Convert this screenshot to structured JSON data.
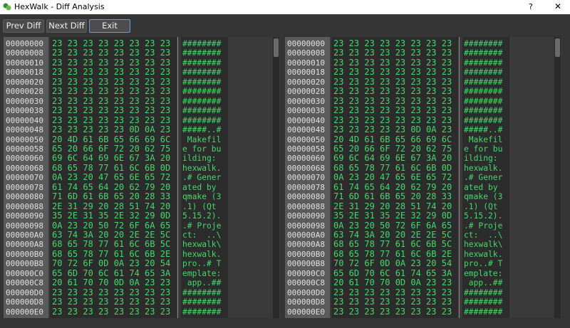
{
  "window": {
    "title": "HexWalk - Diff Analysis",
    "help": "?",
    "close": "✕"
  },
  "toolbar": {
    "buttons": [
      "Prev Diff",
      "Next Diff",
      "Exit"
    ]
  },
  "panels": [
    {
      "rows": [
        [
          "00000000",
          "23 23 23 23 23 23 23 23",
          "########"
        ],
        [
          "00000008",
          "23 23 23 23 23 23 23 23",
          "########"
        ],
        [
          "00000010",
          "23 23 23 23 23 23 23 23",
          "########"
        ],
        [
          "00000018",
          "23 23 23 23 23 23 23 23",
          "########"
        ],
        [
          "00000020",
          "23 23 23 23 23 23 23 23",
          "########"
        ],
        [
          "00000028",
          "23 23 23 23 23 23 23 23",
          "########"
        ],
        [
          "00000030",
          "23 23 23 23 23 23 23 23",
          "########"
        ],
        [
          "00000038",
          "23 23 23 23 23 23 23 23",
          "########"
        ],
        [
          "00000040",
          "23 23 23 23 23 23 23 23",
          "########"
        ],
        [
          "00000048",
          "23 23 23 23 23 0D 0A 23",
          "#####..#"
        ],
        [
          "00000050",
          "20 4D 61 6B 65 66 69 6C",
          " Makefil"
        ],
        [
          "00000058",
          "65 20 66 6F 72 20 62 75",
          "e for bu"
        ],
        [
          "00000060",
          "69 6C 64 69 6E 67 3A 20",
          "ilding: "
        ],
        [
          "00000068",
          "68 65 78 77 61 6C 6B 0D",
          "hexwalk."
        ],
        [
          "00000070",
          "0A 23 20 47 65 6E 65 72",
          ".# Gener"
        ],
        [
          "00000078",
          "61 74 65 64 20 62 79 20",
          "ated by "
        ],
        [
          "00000080",
          "71 6D 61 6B 65 20 28 33",
          "qmake (3"
        ],
        [
          "00000088",
          "2E 31 29 20 28 51 74 20",
          ".1) (Qt "
        ],
        [
          "00000090",
          "35 2E 31 35 2E 32 29 0D",
          "5.15.2)."
        ],
        [
          "00000098",
          "0A 23 20 50 72 6F 6A 65",
          ".# Proje"
        ],
        [
          "000000A0",
          "63 74 3A 20 20 2E 2E 5C",
          "ct:  ..\\"
        ],
        [
          "000000A8",
          "68 65 78 77 61 6C 6B 5C",
          "hexwalk\\"
        ],
        [
          "000000B0",
          "68 65 78 77 61 6C 6B 2E",
          "hexwalk."
        ],
        [
          "000000B8",
          "70 72 6F 0D 0A 23 20 54",
          "pro..# T"
        ],
        [
          "000000C0",
          "65 6D 70 6C 61 74 65 3A",
          "emplate:"
        ],
        [
          "000000C8",
          "20 61 70 70 0D 0A 23 23",
          " app..##"
        ],
        [
          "000000D0",
          "23 23 23 23 23 23 23 23",
          "########"
        ],
        [
          "000000D8",
          "23 23 23 23 23 23 23 23",
          "########"
        ],
        [
          "000000E0",
          "23 23 23 23 23 23 23 23",
          "########"
        ]
      ]
    },
    {
      "rows": [
        [
          "00000000",
          "23 23 23 23 23 23 23 23",
          "########"
        ],
        [
          "00000008",
          "23 23 23 23 23 23 23 23",
          "########"
        ],
        [
          "00000010",
          "23 23 23 23 23 23 23 23",
          "########"
        ],
        [
          "00000018",
          "23 23 23 23 23 23 23 23",
          "########"
        ],
        [
          "00000020",
          "23 23 23 23 23 23 23 23",
          "########"
        ],
        [
          "00000028",
          "23 23 23 23 23 23 23 23",
          "########"
        ],
        [
          "00000030",
          "23 23 23 23 23 23 23 23",
          "########"
        ],
        [
          "00000038",
          "23 23 23 23 23 23 23 23",
          "########"
        ],
        [
          "00000040",
          "23 23 23 23 23 23 23 23",
          "########"
        ],
        [
          "00000048",
          "23 23 23 23 23 0D 0A 23",
          "#####..#"
        ],
        [
          "00000050",
          "20 4D 61 6B 65 66 69 6C",
          " Makefil"
        ],
        [
          "00000058",
          "65 20 66 6F 72 20 62 75",
          "e for bu"
        ],
        [
          "00000060",
          "69 6C 64 69 6E 67 3A 20",
          "ilding: "
        ],
        [
          "00000068",
          "68 65 78 77 61 6C 6B 0D",
          "hexwalk."
        ],
        [
          "00000070",
          "0A 23 20 47 65 6E 65 72",
          ".# Gener"
        ],
        [
          "00000078",
          "61 74 65 64 20 62 79 20",
          "ated by "
        ],
        [
          "00000080",
          "71 6D 61 6B 65 20 28 33",
          "qmake (3"
        ],
        [
          "00000088",
          "2E 31 29 20 28 51 74 20",
          ".1) (Qt "
        ],
        [
          "00000090",
          "35 2E 31 35 2E 32 29 0D",
          "5.15.2)."
        ],
        [
          "00000098",
          "0A 23 20 50 72 6F 6A 65",
          ".# Proje"
        ],
        [
          "000000A0",
          "63 74 3A 20 20 2E 2E 5C",
          "ct:  ..\\"
        ],
        [
          "000000A8",
          "68 65 78 77 61 6C 6B 5C",
          "hexwalk\\"
        ],
        [
          "000000B0",
          "68 65 78 77 61 6C 6B 2E",
          "hexwalk."
        ],
        [
          "000000B8",
          "70 72 6F 0D 0A 23 20 54",
          "pro..# T"
        ],
        [
          "000000C0",
          "65 6D 70 6C 61 74 65 3A",
          "emplate:"
        ],
        [
          "000000C8",
          "20 61 70 70 0D 0A 23 23",
          " app..##"
        ],
        [
          "000000D0",
          "23 23 23 23 23 23 23 23",
          "########"
        ],
        [
          "000000D8",
          "23 23 23 23 23 23 23 23",
          "########"
        ],
        [
          "000000E0",
          "23 23 23 23 23 23 23 23",
          "########"
        ]
      ]
    }
  ]
}
